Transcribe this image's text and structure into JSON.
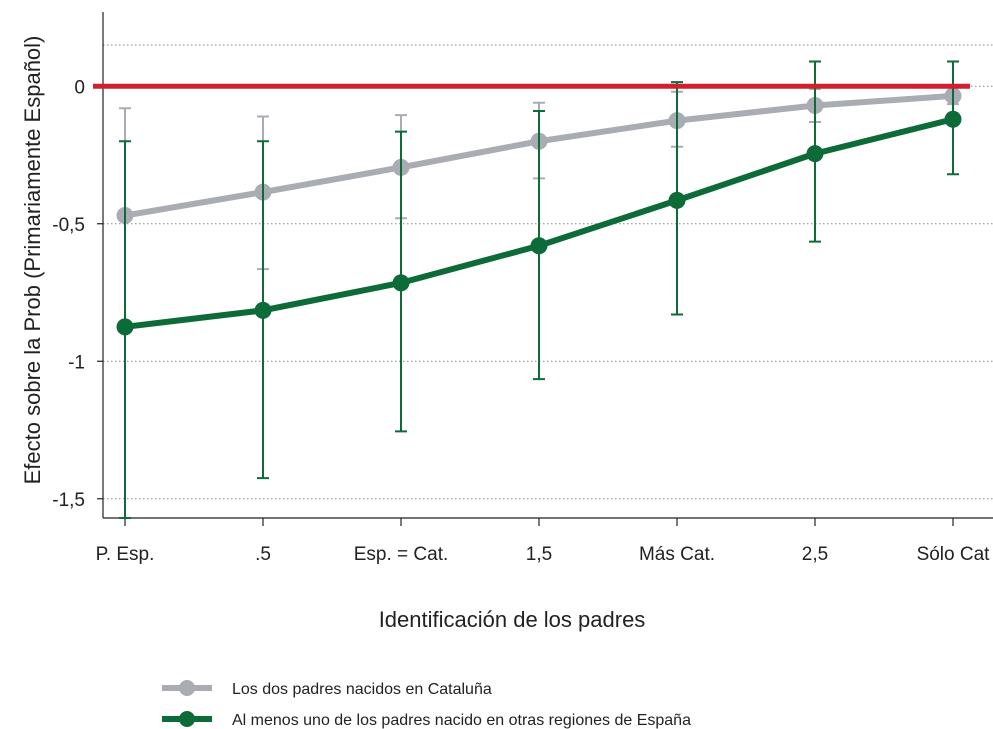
{
  "chart_data": {
    "type": "line",
    "title": "",
    "xlabel": "Identificación de los padres",
    "ylabel": "Efecto sobre la Prob (Primariamente Español)",
    "categories": [
      "P. Esp.",
      ".5",
      "Esp. = Cat.",
      "1,5",
      "Más Cat.",
      "2,5",
      "Sólo Cat"
    ],
    "yticks": [
      {
        "value": 0,
        "label": "0"
      },
      {
        "value": -0.5,
        "label": "-0,5"
      },
      {
        "value": -1,
        "label": "-1"
      },
      {
        "value": -1.5,
        "label": "-1,5"
      }
    ],
    "ylim": [
      -1.57,
      0.27
    ],
    "grid": true,
    "reference_line": {
      "value": 0,
      "color": "#d0202f"
    },
    "legend_position": "bottom",
    "series": [
      {
        "name": "Los dos padres nacidos en Cataluña",
        "color": "#a9adb3",
        "values": [
          -0.47,
          -0.385,
          -0.295,
          -0.2,
          -0.125,
          -0.07,
          -0.035
        ],
        "ci_lower": [
          -0.87,
          -0.665,
          -0.48,
          -0.335,
          -0.22,
          -0.13,
          -0.065
        ],
        "ci_upper": [
          -0.08,
          -0.11,
          -0.105,
          -0.06,
          -0.02,
          -0.01,
          -0.005
        ]
      },
      {
        "name": "Al menos uno de los padres nacido en otras regiones de España",
        "color": "#0d6b38",
        "values": [
          -0.875,
          -0.815,
          -0.715,
          -0.58,
          -0.415,
          -0.245,
          -0.12
        ],
        "ci_lower": [
          -1.57,
          -1.425,
          -1.255,
          -1.065,
          -0.83,
          -0.565,
          -0.32
        ],
        "ci_upper": [
          -0.2,
          -0.2,
          -0.165,
          -0.09,
          0.015,
          0.09,
          0.09
        ]
      }
    ]
  }
}
